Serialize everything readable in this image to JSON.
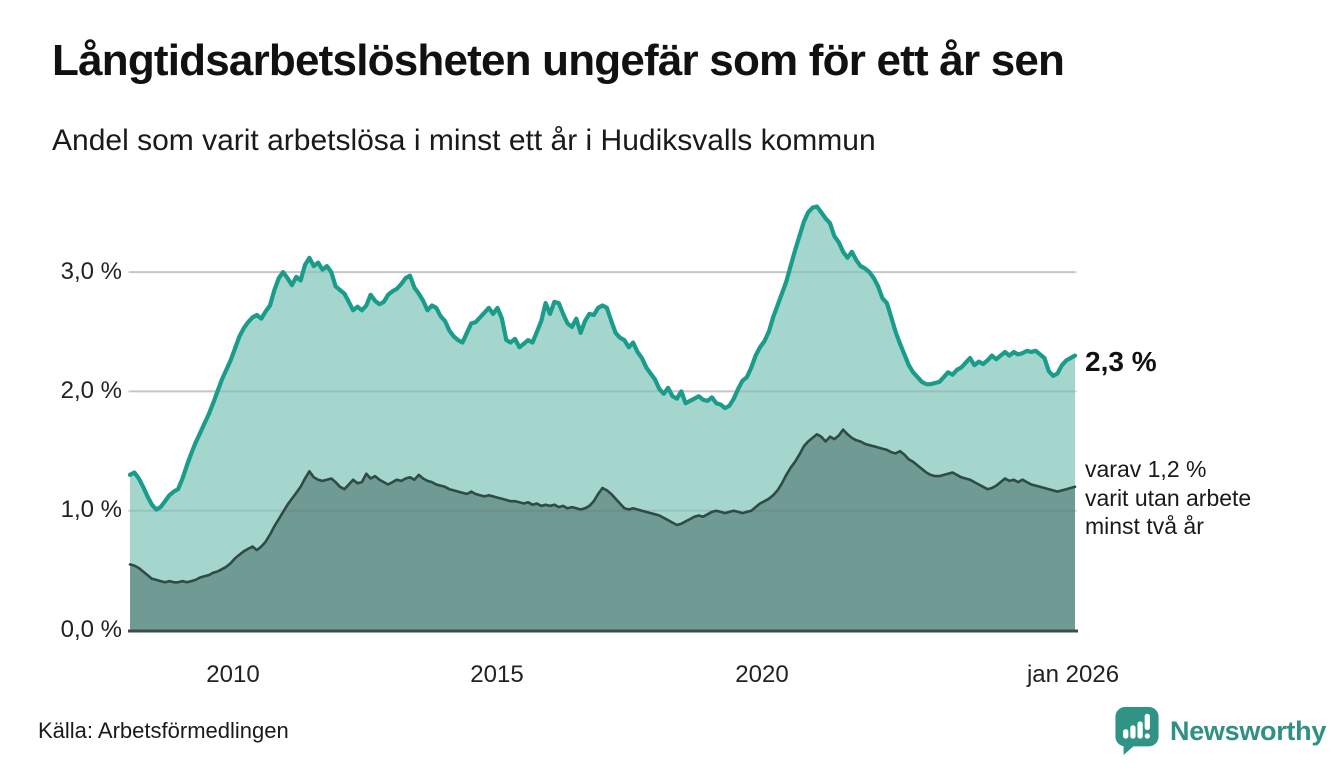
{
  "header": {
    "title": "Långtidsarbetslösheten ungefär som för ett år sen",
    "subtitle": "Andel som varit arbetslösa i minst ett år i Hudiksvalls kommun"
  },
  "annotations": {
    "latest_value": "2,3 %",
    "secondary": [
      "varav 1,2 %",
      "varit utan arbete",
      "minst två år"
    ]
  },
  "footer": {
    "source": "Källa: Arbetsförmedlingen",
    "brand": "Newsworthy"
  },
  "colors": {
    "line_over_1_year": "#1a9c8b",
    "fill_over_1_year": "#a5d6ce",
    "line_over_2_years": "#2e4b45",
    "fill_over_2_years": "#709b94",
    "gridline": "#dcdcdc",
    "axis": "#3e4c49",
    "brand_teal": "#2f9486"
  },
  "chart_data": {
    "type": "area",
    "title": "Andel som varit arbetslösa i minst ett år i Hudiksvalls kommun",
    "x_start": "2008-01",
    "x_end": "2026-01",
    "x_interval": "monthly",
    "ylim": [
      0,
      3.7
    ],
    "yticks": [
      {
        "label": "0,0 %",
        "value": 0.0
      },
      {
        "label": "1,0 %",
        "value": 1.0
      },
      {
        "label": "2,0 %",
        "value": 2.0
      },
      {
        "label": "3,0 %",
        "value": 3.0
      }
    ],
    "xticks": [
      {
        "label": "2010"
      },
      {
        "label": "2015"
      },
      {
        "label": "2020"
      },
      {
        "label": "jan 2026"
      }
    ],
    "grid": "horizontal",
    "legend": "none",
    "series": [
      {
        "name": "arbetslösa minst ett år",
        "latest": 2.3,
        "values": [
          1.3,
          1.32,
          1.27,
          1.2,
          1.12,
          1.05,
          1.01,
          1.03,
          1.08,
          1.13,
          1.16,
          1.18,
          1.27,
          1.38,
          1.48,
          1.57,
          1.65,
          1.73,
          1.81,
          1.9,
          2.0,
          2.1,
          2.18,
          2.26,
          2.36,
          2.46,
          2.53,
          2.58,
          2.62,
          2.64,
          2.61,
          2.67,
          2.72,
          2.85,
          2.95,
          3.0,
          2.95,
          2.89,
          2.96,
          2.93,
          3.06,
          3.12,
          3.05,
          3.08,
          3.02,
          3.05,
          3.0,
          2.88,
          2.85,
          2.82,
          2.75,
          2.68,
          2.71,
          2.68,
          2.72,
          2.81,
          2.76,
          2.73,
          2.75,
          2.81,
          2.84,
          2.86,
          2.9,
          2.95,
          2.97,
          2.87,
          2.82,
          2.76,
          2.68,
          2.72,
          2.7,
          2.63,
          2.59,
          2.51,
          2.46,
          2.43,
          2.41,
          2.49,
          2.57,
          2.58,
          2.62,
          2.66,
          2.7,
          2.65,
          2.7,
          2.61,
          2.43,
          2.41,
          2.44,
          2.37,
          2.4,
          2.43,
          2.41,
          2.5,
          2.59,
          2.74,
          2.65,
          2.75,
          2.74,
          2.65,
          2.57,
          2.54,
          2.61,
          2.49,
          2.59,
          2.65,
          2.64,
          2.7,
          2.72,
          2.7,
          2.59,
          2.49,
          2.45,
          2.43,
          2.37,
          2.41,
          2.33,
          2.28,
          2.2,
          2.15,
          2.1,
          2.02,
          1.98,
          2.03,
          1.96,
          1.94,
          2.0,
          1.9,
          1.92,
          1.94,
          1.96,
          1.93,
          1.92,
          1.95,
          1.9,
          1.89,
          1.86,
          1.88,
          1.94,
          2.02,
          2.09,
          2.12,
          2.2,
          2.3,
          2.37,
          2.42,
          2.5,
          2.62,
          2.72,
          2.82,
          2.92,
          3.05,
          3.18,
          3.3,
          3.42,
          3.5,
          3.54,
          3.55,
          3.5,
          3.45,
          3.41,
          3.3,
          3.25,
          3.17,
          3.12,
          3.17,
          3.1,
          3.05,
          3.03,
          3.0,
          2.95,
          2.88,
          2.78,
          2.74,
          2.62,
          2.5,
          2.4,
          2.31,
          2.22,
          2.16,
          2.12,
          2.08,
          2.06,
          2.06,
          2.07,
          2.08,
          2.12,
          2.16,
          2.14,
          2.18,
          2.2,
          2.24,
          2.28,
          2.22,
          2.25,
          2.23,
          2.26,
          2.3,
          2.27,
          2.3,
          2.33,
          2.3,
          2.33,
          2.31,
          2.32,
          2.34,
          2.33,
          2.34,
          2.31,
          2.28,
          2.17,
          2.13,
          2.15,
          2.22,
          2.26,
          2.28,
          2.3
        ]
      },
      {
        "name": "varav utan arbete minst två år",
        "latest": 1.2,
        "values": [
          0.55,
          0.54,
          0.52,
          0.49,
          0.46,
          0.43,
          0.42,
          0.41,
          0.4,
          0.41,
          0.4,
          0.4,
          0.41,
          0.4,
          0.41,
          0.42,
          0.44,
          0.45,
          0.46,
          0.48,
          0.49,
          0.51,
          0.53,
          0.56,
          0.6,
          0.63,
          0.66,
          0.68,
          0.7,
          0.67,
          0.7,
          0.74,
          0.8,
          0.87,
          0.93,
          0.99,
          1.05,
          1.1,
          1.15,
          1.2,
          1.27,
          1.33,
          1.28,
          1.26,
          1.25,
          1.26,
          1.27,
          1.24,
          1.2,
          1.18,
          1.22,
          1.26,
          1.23,
          1.24,
          1.31,
          1.27,
          1.29,
          1.26,
          1.24,
          1.22,
          1.24,
          1.26,
          1.25,
          1.27,
          1.28,
          1.26,
          1.3,
          1.27,
          1.25,
          1.24,
          1.22,
          1.21,
          1.2,
          1.18,
          1.17,
          1.16,
          1.15,
          1.14,
          1.16,
          1.14,
          1.13,
          1.12,
          1.13,
          1.12,
          1.11,
          1.1,
          1.09,
          1.08,
          1.08,
          1.07,
          1.06,
          1.07,
          1.05,
          1.06,
          1.04,
          1.05,
          1.04,
          1.05,
          1.03,
          1.04,
          1.02,
          1.03,
          1.02,
          1.01,
          1.02,
          1.04,
          1.08,
          1.14,
          1.19,
          1.17,
          1.14,
          1.1,
          1.06,
          1.02,
          1.01,
          1.02,
          1.01,
          1.0,
          0.99,
          0.98,
          0.97,
          0.96,
          0.94,
          0.92,
          0.9,
          0.88,
          0.89,
          0.91,
          0.93,
          0.95,
          0.96,
          0.95,
          0.97,
          0.99,
          1.0,
          0.99,
          0.98,
          0.99,
          1.0,
          0.99,
          0.98,
          0.99,
          1.0,
          1.03,
          1.06,
          1.08,
          1.1,
          1.13,
          1.17,
          1.23,
          1.3,
          1.36,
          1.41,
          1.47,
          1.54,
          1.58,
          1.61,
          1.64,
          1.62,
          1.58,
          1.62,
          1.6,
          1.63,
          1.68,
          1.64,
          1.61,
          1.59,
          1.58,
          1.56,
          1.55,
          1.54,
          1.53,
          1.52,
          1.51,
          1.49,
          1.48,
          1.5,
          1.47,
          1.43,
          1.41,
          1.38,
          1.35,
          1.32,
          1.3,
          1.29,
          1.29,
          1.3,
          1.31,
          1.32,
          1.3,
          1.28,
          1.27,
          1.26,
          1.24,
          1.22,
          1.2,
          1.18,
          1.19,
          1.21,
          1.24,
          1.27,
          1.25,
          1.26,
          1.24,
          1.26,
          1.24,
          1.22,
          1.21,
          1.2,
          1.19,
          1.18,
          1.17,
          1.16,
          1.17,
          1.18,
          1.19,
          1.2
        ]
      }
    ]
  }
}
